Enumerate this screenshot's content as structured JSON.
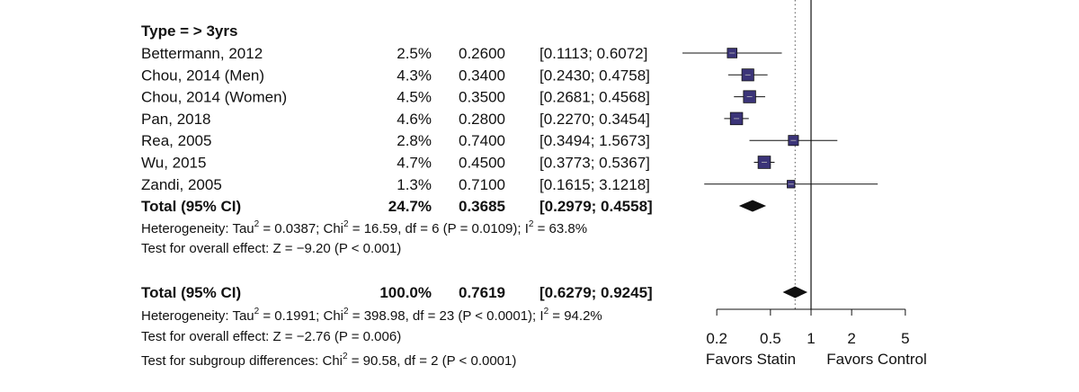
{
  "chart_data": {
    "type": "forest",
    "x_scale": "log",
    "null_value": 1,
    "overall_effect_line": 0.7619,
    "x_ticks": [
      "0.2",
      "0.5",
      "1",
      "2",
      "5"
    ],
    "x_tick_values": [
      0.2,
      0.5,
      1,
      2,
      5
    ],
    "x_labels": {
      "left": "Favors Statin",
      "right": "Favors Control"
    },
    "subgroup": {
      "label": "Type = > 3yrs",
      "studies": [
        {
          "study": "Bettermann, 2012",
          "weight": "2.5%",
          "estimate_text": "0.2600",
          "ci_text": "[0.1113; 0.6072]",
          "est": 0.26,
          "lo": 0.1113,
          "hi": 0.6072,
          "w": 2.5
        },
        {
          "study": "Chou, 2014 (Men)",
          "weight": "4.3%",
          "estimate_text": "0.3400",
          "ci_text": "[0.2430; 0.4758]",
          "est": 0.34,
          "lo": 0.243,
          "hi": 0.4758,
          "w": 4.3
        },
        {
          "study": "Chou, 2014 (Women)",
          "weight": "4.5%",
          "estimate_text": "0.3500",
          "ci_text": "[0.2681; 0.4568]",
          "est": 0.35,
          "lo": 0.2681,
          "hi": 0.4568,
          "w": 4.5
        },
        {
          "study": "Pan, 2018",
          "weight": "4.6%",
          "estimate_text": "0.2800",
          "ci_text": "[0.2270; 0.3454]",
          "est": 0.28,
          "lo": 0.227,
          "hi": 0.3454,
          "w": 4.6
        },
        {
          "study": "Rea, 2005",
          "weight": "2.8%",
          "estimate_text": "0.7400",
          "ci_text": "[0.3494; 1.5673]",
          "est": 0.74,
          "lo": 0.3494,
          "hi": 1.5673,
          "w": 2.8
        },
        {
          "study": "Wu, 2015",
          "weight": "4.7%",
          "estimate_text": "0.4500",
          "ci_text": "[0.3773; 0.5367]",
          "est": 0.45,
          "lo": 0.3773,
          "hi": 0.5367,
          "w": 4.7
        },
        {
          "study": "Zandi, 2005",
          "weight": "1.3%",
          "estimate_text": "0.7100",
          "ci_text": "[0.1615; 3.1218]",
          "est": 0.71,
          "lo": 0.1615,
          "hi": 3.1218,
          "w": 1.3
        }
      ],
      "total": {
        "label": "Total (95% CI)",
        "weight": "24.7%",
        "estimate_text": "0.3685",
        "ci_text": "[0.2979; 0.4558]",
        "est": 0.3685,
        "lo": 0.2979,
        "hi": 0.4558
      },
      "heterogeneity": {
        "pre": "Heterogeneity: Tau",
        "sup1": "2",
        "mid": " = 0.0387; Chi",
        "sup2": "2",
        "mid2": " = 16.59, df = 6 (P = 0.0109); I",
        "sup3": "2",
        "post": " = 63.8%"
      },
      "overall_test": "Test for overall effect: Z = −9.20 (P < 0.001)"
    },
    "overall": {
      "total": {
        "label": "Total (95% CI)",
        "weight": "100.0%",
        "estimate_text": "0.7619",
        "ci_text": "[0.6279; 0.9245]",
        "est": 0.7619,
        "lo": 0.6279,
        "hi": 0.9245
      },
      "heterogeneity": {
        "pre": "Heterogeneity: Tau",
        "sup1": "2",
        "mid": " = 0.1991; Chi",
        "sup2": "2",
        "mid2": " = 398.98, df = 23 (P < 0.0001); I",
        "sup3": "2",
        "post": " = 94.2%"
      },
      "overall_test": "Test for overall effect: Z = −2.76 (P = 0.006)",
      "subgroup_test": {
        "pre": "Test for subgroup differences: Chi",
        "sup": "2",
        "post": " = 90.58, df = 2 (P < 0.0001)"
      }
    },
    "colors": {
      "box_fill": "#3b3478",
      "box_stroke": "#111111",
      "line": "#111111",
      "diamond": "#111111"
    }
  }
}
